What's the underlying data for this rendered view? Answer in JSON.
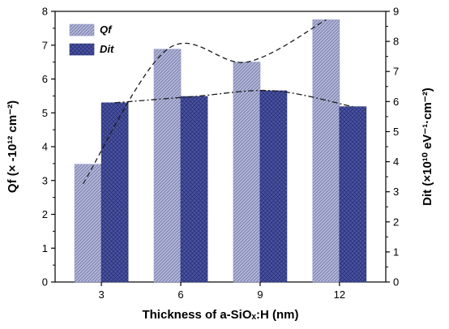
{
  "chart_data": {
    "type": "bar",
    "x_axis": {
      "title": "Thickness of a-SiOₓ:H (nm)",
      "categories": [
        "3",
        "6",
        "9",
        "12"
      ]
    },
    "y_left": {
      "title": "Qf (× -10¹² cm⁻²)",
      "ylim": [
        0,
        8
      ],
      "ticks": [
        0,
        1,
        2,
        3,
        4,
        5,
        6,
        7,
        8
      ]
    },
    "y_right": {
      "title": "Dit (×10¹⁰ eV⁻¹·cm⁻²)",
      "ylim": [
        0,
        9
      ],
      "ticks": [
        0,
        1,
        2,
        3,
        4,
        5,
        6,
        7,
        8,
        9
      ]
    },
    "series": [
      {
        "name": "Qf",
        "axis": "left",
        "values": [
          3.48,
          6.88,
          6.5,
          7.75
        ],
        "fill": "#b4b8d6",
        "hatch": "diagonal",
        "trend": "dashed"
      },
      {
        "name": "Dit",
        "axis": "right",
        "values": [
          5.96,
          6.17,
          6.36,
          5.83
        ],
        "fill": "#4c55a3",
        "hatch": "crosshatch",
        "trend": "dash-dot"
      }
    ],
    "legend": {
      "position": "top-left"
    },
    "grid": false
  }
}
